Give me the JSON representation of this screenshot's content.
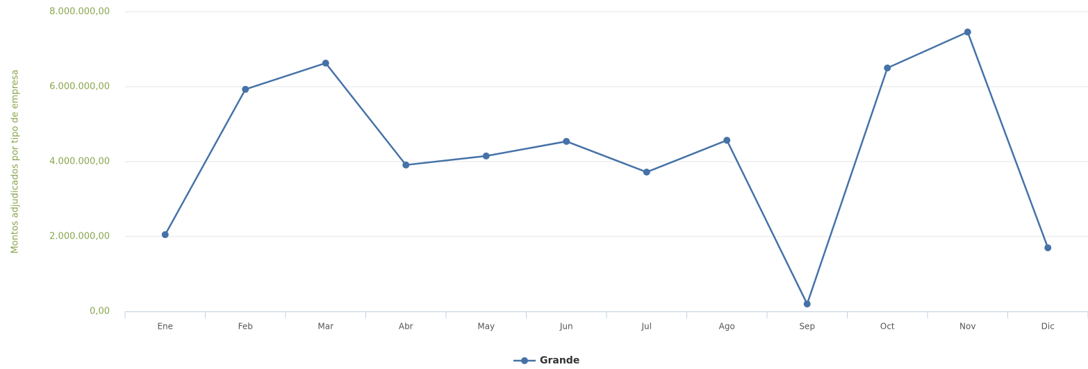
{
  "chart_data": {
    "type": "line",
    "y_axis_label": "Montos adjudicados por tipo de empresa",
    "categories": [
      "Ene",
      "Feb",
      "Mar",
      "Abr",
      "May",
      "Jun",
      "Jul",
      "Ago",
      "Sep",
      "Oct",
      "Nov",
      "Dic"
    ],
    "series": [
      {
        "name": "Grande",
        "color": "#4572a7",
        "values": [
          2050000,
          5930000,
          6630000,
          3910000,
          4150000,
          4540000,
          3720000,
          4570000,
          200000,
          6500000,
          7460000,
          1700000
        ]
      }
    ],
    "ylim": [
      0,
      8000000
    ],
    "yticks": [
      {
        "value": 0,
        "label": "0,00"
      },
      {
        "value": 2000000,
        "label": "2.000.000,00"
      },
      {
        "value": 4000000,
        "label": "4.000.000,00"
      },
      {
        "value": 6000000,
        "label": "6.000.000,00"
      },
      {
        "value": 8000000,
        "label": "8.000.000,00"
      }
    ],
    "grid": true,
    "legend": "bottom"
  }
}
